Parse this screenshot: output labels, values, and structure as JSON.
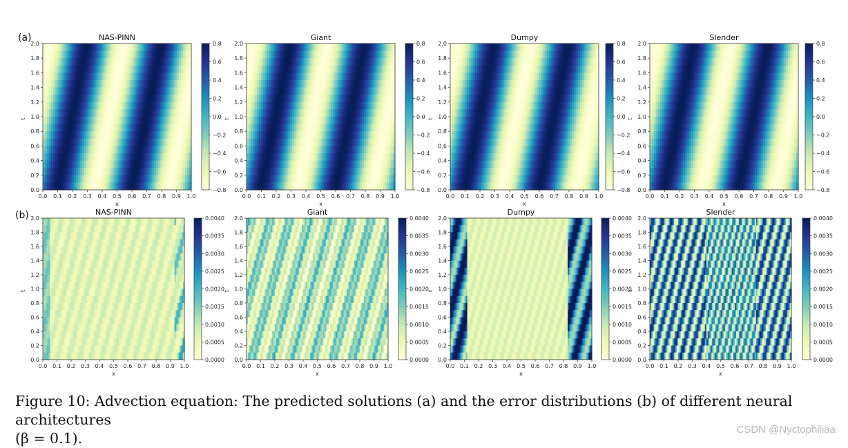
{
  "row_labels": [
    "(a)",
    "(b)"
  ],
  "caption": {
    "line1": "Figure 10: Advection equation: The predicted solutions (a) and the error distributions (b) of different neural architectures",
    "line2": "(β = 0.1)."
  },
  "watermark": "CSDN @Nyctophiliaa",
  "colormap": [
    "#ffffd9",
    "#edf8b1",
    "#c7e9b4",
    "#7fcdbb",
    "#41b6c4",
    "#1d91c0",
    "#225ea8",
    "#253494",
    "#081d58"
  ],
  "chart_data": [
    {
      "type": "heatmap",
      "row": "(a)",
      "title": "NAS-PINN",
      "xlabel": "x",
      "ylabel": "t",
      "xlim": [
        0,
        1
      ],
      "ylim": [
        0,
        2
      ],
      "field": "solution",
      "clim": [
        -0.8,
        0.8
      ],
      "xticks": [
        "0.0",
        "0.1",
        "0.2",
        "0.3",
        "0.4",
        "0.5",
        "0.6",
        "0.7",
        "0.8",
        "0.9",
        "1.0"
      ],
      "yticks": [
        "0.0",
        "0.2",
        "0.4",
        "0.6",
        "0.8",
        "1.0",
        "1.2",
        "1.4",
        "1.6",
        "1.8",
        "2.0"
      ],
      "cbar_ticks": [
        "0.8",
        "0.6",
        "0.4",
        "0.2",
        "0.0",
        "−0.2",
        "−0.4",
        "−0.6",
        "−0.8"
      ]
    },
    {
      "type": "heatmap",
      "row": "(a)",
      "title": "Giant",
      "xlabel": "x",
      "ylabel": "t",
      "xlim": [
        0,
        1
      ],
      "ylim": [
        0,
        2
      ],
      "field": "solution",
      "clim": [
        -0.8,
        0.8
      ],
      "xticks": [
        "0.0",
        "0.1",
        "0.2",
        "0.3",
        "0.4",
        "0.5",
        "0.6",
        "0.7",
        "0.8",
        "0.9",
        "1.0"
      ],
      "yticks": [
        "0.0",
        "0.2",
        "0.4",
        "0.6",
        "0.8",
        "1.0",
        "1.2",
        "1.4",
        "1.6",
        "1.8",
        "2.0"
      ],
      "cbar_ticks": [
        "0.8",
        "0.6",
        "0.4",
        "0.2",
        "0.0",
        "−0.2",
        "−0.4",
        "−0.6",
        "−0.8"
      ]
    },
    {
      "type": "heatmap",
      "row": "(a)",
      "title": "Dumpy",
      "xlabel": "x",
      "ylabel": "t",
      "xlim": [
        0,
        1
      ],
      "ylim": [
        0,
        2
      ],
      "field": "solution",
      "clim": [
        -0.8,
        0.8
      ],
      "xticks": [
        "0.0",
        "0.1",
        "0.2",
        "0.3",
        "0.4",
        "0.5",
        "0.6",
        "0.7",
        "0.8",
        "0.9",
        "1.0"
      ],
      "yticks": [
        "0.0",
        "0.2",
        "0.4",
        "0.6",
        "0.8",
        "1.0",
        "1.2",
        "1.4",
        "1.6",
        "1.8",
        "2.0"
      ],
      "cbar_ticks": [
        "0.8",
        "0.6",
        "0.4",
        "0.2",
        "0.0",
        "−0.2",
        "−0.4",
        "−0.6",
        "−0.8"
      ]
    },
    {
      "type": "heatmap",
      "row": "(a)",
      "title": "Slender",
      "xlabel": "x",
      "ylabel": "t",
      "xlim": [
        0,
        1
      ],
      "ylim": [
        0,
        2
      ],
      "field": "solution",
      "clim": [
        -0.8,
        0.8
      ],
      "xticks": [
        "0.0",
        "0.1",
        "0.2",
        "0.3",
        "0.4",
        "0.5",
        "0.6",
        "0.7",
        "0.8",
        "0.9",
        "1.0"
      ],
      "yticks": [
        "0.0",
        "0.2",
        "0.4",
        "0.6",
        "0.8",
        "1.0",
        "1.2",
        "1.4",
        "1.6",
        "1.8",
        "2.0"
      ],
      "cbar_ticks": [
        "0.8",
        "0.6",
        "0.4",
        "0.2",
        "0.0",
        "−0.2",
        "−0.4",
        "−0.6",
        "−0.8"
      ]
    },
    {
      "type": "heatmap",
      "row": "(b)",
      "title": "NAS-PINN",
      "xlabel": "x",
      "ylabel": "t",
      "xlim": [
        0,
        1
      ],
      "ylim": [
        0,
        2
      ],
      "field": "error",
      "error_level": "low",
      "clim": [
        0,
        0.004
      ],
      "xticks": [
        "0.0",
        "0.1",
        "0.2",
        "0.3",
        "0.4",
        "0.5",
        "0.6",
        "0.7",
        "0.8",
        "0.9",
        "1.0"
      ],
      "yticks": [
        "0.0",
        "0.2",
        "0.4",
        "0.6",
        "0.8",
        "1.0",
        "1.2",
        "1.4",
        "1.6",
        "1.8",
        "2.0"
      ],
      "cbar_ticks": [
        "0.0040",
        "0.0035",
        "0.0030",
        "0.0025",
        "0.0020",
        "0.0015",
        "0.0010",
        "0.0005",
        "0.0000"
      ]
    },
    {
      "type": "heatmap",
      "row": "(b)",
      "title": "Giant",
      "xlabel": "x",
      "ylabel": "t",
      "xlim": [
        0,
        1
      ],
      "ylim": [
        0,
        2
      ],
      "field": "error",
      "error_level": "medium",
      "clim": [
        0,
        0.004
      ],
      "xticks": [
        "0.0",
        "0.1",
        "0.2",
        "0.3",
        "0.4",
        "0.5",
        "0.6",
        "0.7",
        "0.8",
        "0.9",
        "1.0"
      ],
      "yticks": [
        "0.0",
        "0.2",
        "0.4",
        "0.6",
        "0.8",
        "1.0",
        "1.2",
        "1.4",
        "1.6",
        "1.8",
        "2.0"
      ],
      "cbar_ticks": [
        "0.0040",
        "0.0035",
        "0.0030",
        "0.0025",
        "0.0020",
        "0.0015",
        "0.0010",
        "0.0005",
        "0.0000"
      ]
    },
    {
      "type": "heatmap",
      "row": "(b)",
      "title": "Dumpy",
      "xlabel": "x",
      "ylabel": "t",
      "xlim": [
        0,
        1
      ],
      "ylim": [
        0,
        2
      ],
      "field": "error",
      "error_level": "high-at-edges",
      "clim": [
        0,
        0.004
      ],
      "xticks": [
        "0.0",
        "0.1",
        "0.2",
        "0.3",
        "0.4",
        "0.5",
        "0.6",
        "0.7",
        "0.8",
        "0.9",
        "1.0"
      ],
      "yticks": [
        "0.0",
        "0.2",
        "0.4",
        "0.6",
        "0.8",
        "1.0",
        "1.2",
        "1.4",
        "1.6",
        "1.8",
        "2.0"
      ],
      "cbar_ticks": [
        "0.0040",
        "0.0035",
        "0.0030",
        "0.0025",
        "0.0020",
        "0.0015",
        "0.0010",
        "0.0005",
        "0.0000"
      ]
    },
    {
      "type": "heatmap",
      "row": "(b)",
      "title": "Slender",
      "xlabel": "x",
      "ylabel": "t",
      "xlim": [
        0,
        1
      ],
      "ylim": [
        0,
        2
      ],
      "field": "error",
      "error_level": "high",
      "clim": [
        0,
        0.004
      ],
      "xticks": [
        "0.0",
        "0.1",
        "0.2",
        "0.3",
        "0.4",
        "0.5",
        "0.6",
        "0.7",
        "0.8",
        "0.9",
        "1.0"
      ],
      "yticks": [
        "0.0",
        "0.2",
        "0.4",
        "0.6",
        "0.8",
        "1.0",
        "1.2",
        "1.4",
        "1.6",
        "1.8",
        "2.0"
      ],
      "cbar_ticks": [
        "0.0040",
        "0.0035",
        "0.0030",
        "0.0025",
        "0.0020",
        "0.0015",
        "0.0010",
        "0.0005",
        "0.0000"
      ]
    }
  ]
}
